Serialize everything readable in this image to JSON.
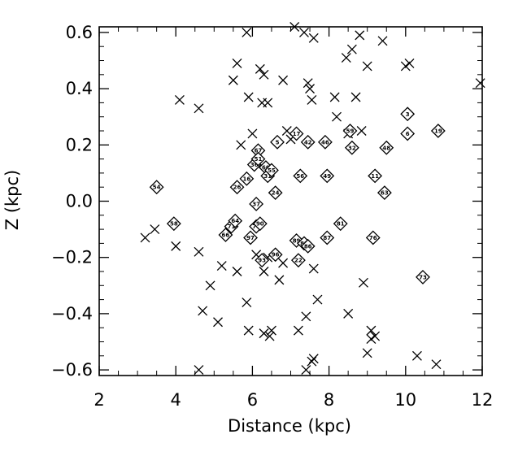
{
  "chart_data": {
    "type": "scatter",
    "title": "",
    "xlabel": "Distance (kpc)",
    "ylabel": "Z (kpc)",
    "xlim": [
      2,
      12
    ],
    "ylim": [
      -0.62,
      0.62
    ],
    "xticks": [
      "2",
      "4",
      "6",
      "8",
      "10",
      "12"
    ],
    "yticks": [
      "0.6",
      "0.4",
      "0.2",
      "0.0",
      "−0.2",
      "−0.4",
      "−0.6"
    ],
    "grid": false,
    "legend": "none",
    "series": [
      {
        "marker": "x",
        "points": [
          [
            3.2,
            -0.13
          ],
          [
            3.45,
            -0.1
          ],
          [
            4.1,
            0.36
          ],
          [
            4.0,
            -0.16
          ],
          [
            4.6,
            0.33
          ],
          [
            4.6,
            -0.18
          ],
          [
            4.7,
            -0.39
          ],
          [
            4.6,
            -0.6
          ],
          [
            4.9,
            -0.3
          ],
          [
            5.1,
            -0.43
          ],
          [
            5.2,
            -0.23
          ],
          [
            5.5,
            0.43
          ],
          [
            5.6,
            0.49
          ],
          [
            5.6,
            -0.25
          ],
          [
            5.7,
            0.2
          ],
          [
            5.85,
            0.6
          ],
          [
            5.85,
            -0.36
          ],
          [
            5.9,
            -0.46
          ],
          [
            5.9,
            0.37
          ],
          [
            6.0,
            0.24
          ],
          [
            6.1,
            -0.19
          ],
          [
            6.2,
            0.47
          ],
          [
            6.25,
            0.35
          ],
          [
            6.3,
            0.45
          ],
          [
            6.4,
            0.35
          ],
          [
            6.3,
            -0.47
          ],
          [
            6.45,
            -0.48
          ],
          [
            6.5,
            -0.46
          ],
          [
            6.3,
            -0.25
          ],
          [
            6.4,
            -0.2
          ],
          [
            6.7,
            -0.28
          ],
          [
            6.8,
            0.43
          ],
          [
            6.8,
            -0.22
          ],
          [
            6.9,
            0.25
          ],
          [
            7.0,
            0.22
          ],
          [
            7.1,
            0.62
          ],
          [
            7.2,
            -0.46
          ],
          [
            7.4,
            -0.41
          ],
          [
            7.35,
            0.6
          ],
          [
            7.45,
            0.42
          ],
          [
            7.5,
            0.4
          ],
          [
            7.55,
            0.36
          ],
          [
            7.55,
            -0.57
          ],
          [
            7.6,
            0.58
          ],
          [
            7.6,
            -0.56
          ],
          [
            7.7,
            -0.35
          ],
          [
            7.4,
            -0.6
          ],
          [
            7.6,
            -0.24
          ],
          [
            8.15,
            0.37
          ],
          [
            8.2,
            0.3
          ],
          [
            8.45,
            0.51
          ],
          [
            8.5,
            -0.4
          ],
          [
            8.5,
            0.24
          ],
          [
            8.6,
            0.54
          ],
          [
            8.7,
            0.37
          ],
          [
            8.8,
            0.59
          ],
          [
            8.85,
            0.25
          ],
          [
            8.9,
            -0.29
          ],
          [
            9.0,
            0.48
          ],
          [
            9.0,
            -0.54
          ],
          [
            9.1,
            -0.46
          ],
          [
            9.1,
            -0.49
          ],
          [
            9.2,
            -0.48
          ],
          [
            9.4,
            0.57
          ],
          [
            10.0,
            0.48
          ],
          [
            10.1,
            0.49
          ],
          [
            10.3,
            -0.55
          ],
          [
            10.8,
            -0.58
          ],
          [
            11.95,
            0.42
          ]
        ]
      },
      {
        "marker": "diamond",
        "points": [
          {
            "x": 3.5,
            "y": 0.05,
            "label": "54"
          },
          {
            "x": 3.95,
            "y": -0.08,
            "label": "58"
          },
          {
            "x": 5.3,
            "y": -0.12,
            "label": "66"
          },
          {
            "x": 5.45,
            "y": -0.09,
            "label": "71"
          },
          {
            "x": 5.55,
            "y": -0.07,
            "label": "64"
          },
          {
            "x": 5.6,
            "y": 0.05,
            "label": "26"
          },
          {
            "x": 5.85,
            "y": 0.08,
            "label": "16"
          },
          {
            "x": 5.95,
            "y": -0.13,
            "label": "97"
          },
          {
            "x": 6.05,
            "y": 0.13,
            "label": "36"
          },
          {
            "x": 6.1,
            "y": -0.09,
            "label": "74"
          },
          {
            "x": 6.15,
            "y": 0.18,
            "label": "67"
          },
          {
            "x": 6.15,
            "y": 0.15,
            "label": "51"
          },
          {
            "x": 6.2,
            "y": -0.08,
            "label": "90"
          },
          {
            "x": 6.25,
            "y": -0.21,
            "label": "93"
          },
          {
            "x": 6.35,
            "y": 0.12,
            "label": "60"
          },
          {
            "x": 6.4,
            "y": 0.09,
            "label": "31"
          },
          {
            "x": 6.5,
            "y": 0.11,
            "label": "55"
          },
          {
            "x": 6.1,
            "y": -0.01,
            "label": "37"
          },
          {
            "x": 6.6,
            "y": -0.19,
            "label": "96"
          },
          {
            "x": 6.6,
            "y": 0.03,
            "label": "24"
          },
          {
            "x": 6.65,
            "y": 0.21,
            "label": "5"
          },
          {
            "x": 7.15,
            "y": 0.24,
            "label": "17"
          },
          {
            "x": 7.15,
            "y": -0.14,
            "label": "89"
          },
          {
            "x": 7.2,
            "y": -0.21,
            "label": "22"
          },
          {
            "x": 7.25,
            "y": 0.09,
            "label": "56"
          },
          {
            "x": 7.35,
            "y": -0.15,
            "label": "85"
          },
          {
            "x": 7.45,
            "y": 0.21,
            "label": "42"
          },
          {
            "x": 7.45,
            "y": -0.16,
            "label": "86"
          },
          {
            "x": 7.9,
            "y": 0.21,
            "label": "46"
          },
          {
            "x": 7.95,
            "y": 0.09,
            "label": "49"
          },
          {
            "x": 7.95,
            "y": -0.13,
            "label": "87"
          },
          {
            "x": 8.3,
            "y": -0.08,
            "label": "81"
          },
          {
            "x": 8.55,
            "y": 0.25,
            "label": "59"
          },
          {
            "x": 8.6,
            "y": 0.19,
            "label": "32"
          },
          {
            "x": 9.2,
            "y": 0.09,
            "label": "11"
          },
          {
            "x": 9.15,
            "y": -0.13,
            "label": "76"
          },
          {
            "x": 9.45,
            "y": 0.03,
            "label": "63"
          },
          {
            "x": 9.5,
            "y": 0.19,
            "label": "48"
          },
          {
            "x": 10.05,
            "y": 0.31,
            "label": "3"
          },
          {
            "x": 10.05,
            "y": 0.24,
            "label": "6"
          },
          {
            "x": 10.45,
            "y": -0.27,
            "label": "73"
          },
          {
            "x": 10.85,
            "y": 0.25,
            "label": "19"
          }
        ]
      }
    ]
  }
}
